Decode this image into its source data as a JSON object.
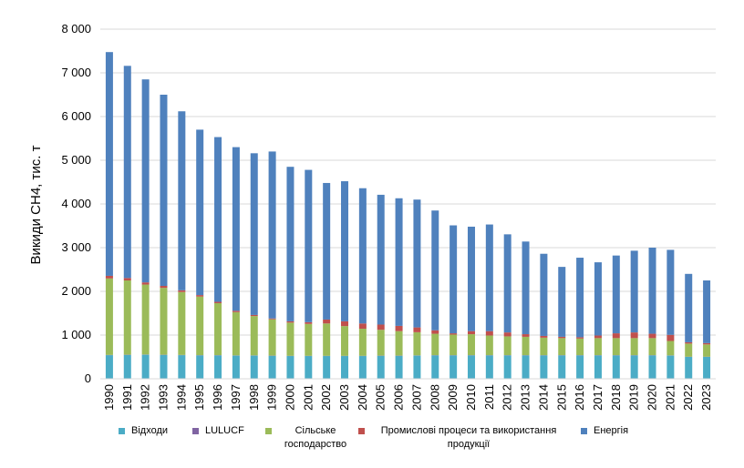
{
  "chart_data": {
    "type": "bar",
    "stacked": true,
    "ylabel": "Викиди CH4, тис. т",
    "ylim": [
      0,
      8000
    ],
    "yticks": [
      "0",
      "1 000",
      "2 000",
      "3 000",
      "4 000",
      "5 000",
      "6 000",
      "7 000",
      "8 000"
    ],
    "grid": true,
    "legend_position": "bottom",
    "categories": [
      "1990",
      "1991",
      "1992",
      "1993",
      "1994",
      "1995",
      "1996",
      "1997",
      "1998",
      "1999",
      "2000",
      "2001",
      "2002",
      "2003",
      "2004",
      "2005",
      "2006",
      "2007",
      "2008",
      "2009",
      "2010",
      "2011",
      "2012",
      "2013",
      "2014",
      "2015",
      "2016",
      "2017",
      "2018",
      "2019",
      "2020",
      "2021",
      "2022",
      "2023"
    ],
    "series": [
      {
        "name": "Відходи",
        "color": "#4bacc6",
        "values": [
          540,
          545,
          550,
          545,
          540,
          535,
          535,
          530,
          530,
          525,
          520,
          520,
          520,
          520,
          520,
          525,
          525,
          530,
          535,
          535,
          535,
          535,
          535,
          535,
          535,
          535,
          535,
          535,
          535,
          535,
          535,
          530,
          500,
          500
        ]
      },
      {
        "name": "LULUCF",
        "color": "#8064a2",
        "values": [
          5,
          5,
          5,
          5,
          5,
          5,
          5,
          5,
          5,
          5,
          5,
          5,
          5,
          5,
          5,
          5,
          5,
          5,
          5,
          5,
          5,
          5,
          5,
          5,
          5,
          5,
          5,
          5,
          5,
          5,
          5,
          5,
          5,
          5
        ]
      },
      {
        "name": "Сільське господарство",
        "color": "#9bbb59",
        "values": [
          1750,
          1700,
          1600,
          1530,
          1440,
          1340,
          1190,
          990,
          900,
          830,
          760,
          730,
          740,
          680,
          620,
          590,
          560,
          530,
          490,
          470,
          480,
          450,
          430,
          420,
          400,
          390,
          380,
          390,
          390,
          390,
          390,
          330,
          300,
          280
        ]
      },
      {
        "name": "Промислові процеси та використання продукції",
        "color": "#c0504d",
        "values": [
          60,
          55,
          50,
          45,
          40,
          35,
          30,
          30,
          25,
          20,
          30,
          40,
          90,
          110,
          120,
          120,
          120,
          110,
          80,
          30,
          70,
          100,
          90,
          60,
          40,
          30,
          30,
          60,
          110,
          130,
          100,
          140,
          30,
          30
        ]
      },
      {
        "name": "Енергія",
        "color": "#4f81bd",
        "values": [
          5120,
          4855,
          4645,
          4375,
          4095,
          3785,
          3770,
          3745,
          3700,
          3820,
          3535,
          3485,
          3125,
          3205,
          3095,
          2970,
          2920,
          2925,
          2740,
          2470,
          2390,
          2440,
          2245,
          2120,
          1880,
          1600,
          1820,
          1675,
          1780,
          1870,
          1970,
          1945,
          1565,
          1435
        ]
      }
    ]
  }
}
